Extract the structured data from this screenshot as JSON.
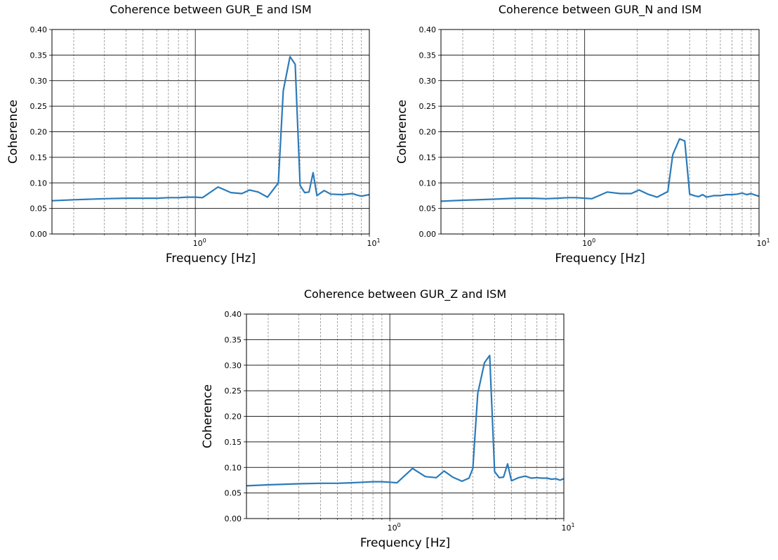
{
  "chart_data": [
    {
      "type": "line",
      "title": "Coherence between GUR_E and ISM",
      "xlabel": "Frequency [Hz]",
      "ylabel": "Coherence",
      "xscale": "log",
      "xlim": [
        0.15,
        10
      ],
      "ylim": [
        0,
        0.4
      ],
      "yticks": [
        "0.00",
        "0.05",
        "0.10",
        "0.15",
        "0.20",
        "0.25",
        "0.30",
        "0.35",
        "0.40"
      ],
      "xticks": [
        {
          "base": "10",
          "exp": "0"
        },
        {
          "base": "10",
          "exp": "1"
        }
      ],
      "grid": "major solid, minor dashed",
      "line_color": "#2b7bba",
      "series": [
        {
          "x": [
            0.15,
            0.2,
            0.3,
            0.4,
            0.5,
            0.6,
            0.7,
            0.8,
            0.9,
            1.0,
            1.1,
            1.35,
            1.6,
            1.85,
            2.05,
            2.3,
            2.6,
            3.0,
            3.2,
            3.5,
            3.75,
            4.0,
            4.25,
            4.5,
            4.75,
            5.0,
            5.5,
            6.0,
            7.0,
            8.0,
            8.5,
            9.0,
            10.0
          ],
          "y": [
            0.065,
            0.067,
            0.069,
            0.07,
            0.07,
            0.07,
            0.071,
            0.071,
            0.072,
            0.072,
            0.071,
            0.092,
            0.081,
            0.079,
            0.086,
            0.082,
            0.072,
            0.1,
            0.28,
            0.347,
            0.332,
            0.095,
            0.081,
            0.082,
            0.12,
            0.075,
            0.085,
            0.078,
            0.077,
            0.079,
            0.076,
            0.074,
            0.077
          ]
        }
      ]
    },
    {
      "type": "line",
      "title": "Coherence between GUR_N and ISM",
      "xlabel": "Frequency [Hz]",
      "ylabel": "Coherence",
      "xscale": "log",
      "xlim": [
        0.15,
        10
      ],
      "ylim": [
        0,
        0.4
      ],
      "yticks": [
        "0.00",
        "0.05",
        "0.10",
        "0.15",
        "0.20",
        "0.25",
        "0.30",
        "0.35",
        "0.40"
      ],
      "xticks": [
        {
          "base": "10",
          "exp": "0"
        },
        {
          "base": "10",
          "exp": "1"
        }
      ],
      "grid": "major solid, minor dashed",
      "line_color": "#2b7bba",
      "series": [
        {
          "x": [
            0.15,
            0.2,
            0.3,
            0.4,
            0.5,
            0.6,
            0.7,
            0.8,
            0.9,
            1.0,
            1.1,
            1.35,
            1.6,
            1.85,
            2.05,
            2.3,
            2.6,
            3.0,
            3.2,
            3.5,
            3.75,
            4.0,
            4.25,
            4.5,
            4.75,
            5.0,
            5.5,
            6.0,
            6.5,
            7.0,
            7.5,
            8.0,
            8.5,
            9.0,
            9.5,
            10.0
          ],
          "y": [
            0.064,
            0.066,
            0.068,
            0.07,
            0.07,
            0.069,
            0.07,
            0.071,
            0.071,
            0.07,
            0.069,
            0.082,
            0.079,
            0.079,
            0.086,
            0.078,
            0.072,
            0.083,
            0.155,
            0.186,
            0.182,
            0.078,
            0.075,
            0.073,
            0.077,
            0.072,
            0.075,
            0.075,
            0.077,
            0.077,
            0.078,
            0.08,
            0.077,
            0.079,
            0.076,
            0.074
          ]
        }
      ]
    },
    {
      "type": "line",
      "title": "Coherence between GUR_Z and ISM",
      "xlabel": "Frequency [Hz]",
      "ylabel": "Coherence",
      "xscale": "log",
      "xlim": [
        0.15,
        10
      ],
      "ylim": [
        0,
        0.4
      ],
      "yticks": [
        "0.00",
        "0.05",
        "0.10",
        "0.15",
        "0.20",
        "0.25",
        "0.30",
        "0.35",
        "0.40"
      ],
      "xticks": [
        {
          "base": "10",
          "exp": "0"
        },
        {
          "base": "10",
          "exp": "1"
        }
      ],
      "grid": "major solid, minor dashed",
      "line_color": "#2b7bba",
      "series": [
        {
          "x": [
            0.15,
            0.2,
            0.3,
            0.4,
            0.5,
            0.6,
            0.7,
            0.8,
            0.9,
            1.0,
            1.1,
            1.35,
            1.6,
            1.85,
            2.05,
            2.3,
            2.6,
            2.85,
            3.0,
            3.2,
            3.5,
            3.75,
            4.0,
            4.25,
            4.5,
            4.75,
            5.0,
            5.5,
            6.0,
            6.5,
            7.0,
            7.5,
            8.0,
            8.5,
            9.0,
            9.5,
            10.0
          ],
          "y": [
            0.064,
            0.066,
            0.068,
            0.069,
            0.069,
            0.07,
            0.071,
            0.072,
            0.072,
            0.071,
            0.07,
            0.098,
            0.082,
            0.08,
            0.093,
            0.081,
            0.073,
            0.079,
            0.098,
            0.245,
            0.305,
            0.319,
            0.092,
            0.08,
            0.081,
            0.107,
            0.074,
            0.08,
            0.083,
            0.079,
            0.08,
            0.079,
            0.079,
            0.077,
            0.078,
            0.075,
            0.078
          ]
        }
      ]
    }
  ]
}
